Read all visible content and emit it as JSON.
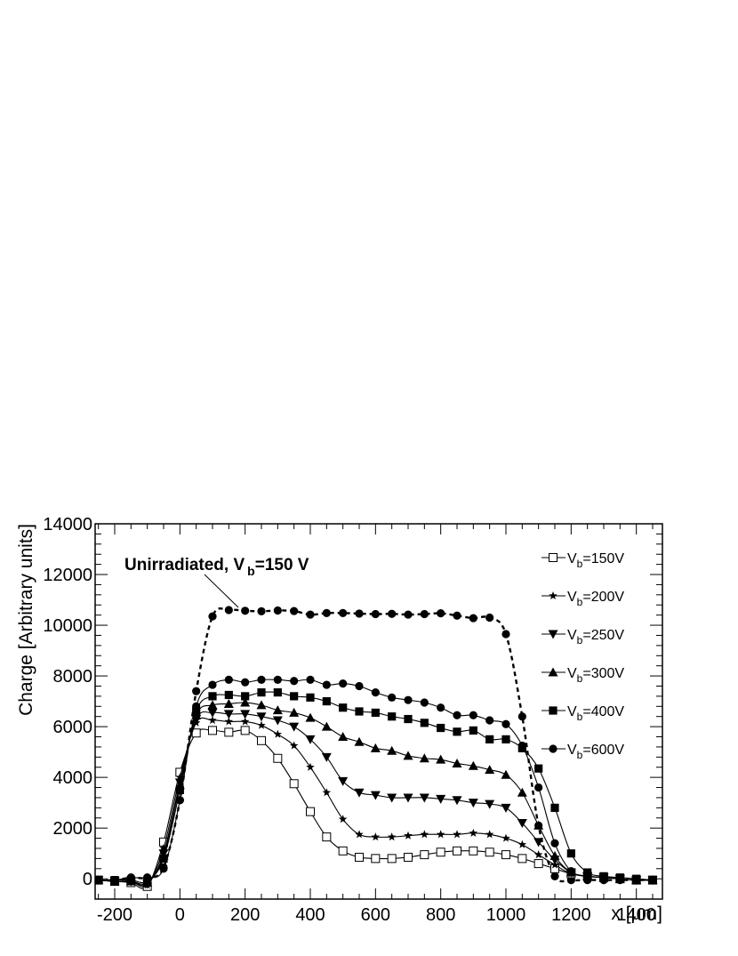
{
  "chart_data": {
    "type": "line",
    "xlabel": "x [μm]",
    "ylabel": "Charge [Arbitrary units]",
    "xlim": [
      -260,
      1480
    ],
    "ylim": [
      -800,
      14000
    ],
    "x_ticks": [
      -200,
      0,
      200,
      400,
      600,
      800,
      1000,
      1200,
      1400
    ],
    "y_ticks": [
      0,
      2000,
      4000,
      6000,
      8000,
      10000,
      12000,
      14000
    ],
    "grid": false,
    "legend_position": "top-right",
    "annotation": {
      "main": "Unirradiated, V",
      "sub": "b",
      "tail": "=150 V",
      "points_to_series": "unirradiated"
    },
    "series": [
      {
        "id": "unirradiated",
        "marker": "circle-filled",
        "line": "dashed",
        "x": [
          -250,
          -200,
          -150,
          -100,
          -50,
          0,
          50,
          100,
          150,
          200,
          250,
          300,
          350,
          400,
          450,
          500,
          550,
          600,
          650,
          700,
          750,
          800,
          850,
          900,
          950,
          1000,
          1050,
          1100,
          1150,
          1200,
          1250,
          1300,
          1350,
          1400,
          1450
        ],
        "y": [
          -50,
          -50,
          50,
          50,
          450,
          3100,
          7400,
          10350,
          10600,
          10570,
          10550,
          10580,
          10560,
          10420,
          10480,
          10480,
          10460,
          10440,
          10450,
          10420,
          10440,
          10470,
          10380,
          10280,
          10300,
          9650,
          6400,
          2100,
          100,
          -50,
          -50,
          -50,
          -50,
          -50,
          -50
        ]
      },
      {
        "id": "vb150",
        "legend_main": "V",
        "legend_sub": "b",
        "legend_tail": "=150V",
        "marker": "square-open",
        "line": "solid",
        "x": [
          -250,
          -200,
          -150,
          -100,
          -50,
          0,
          50,
          100,
          150,
          200,
          250,
          300,
          350,
          400,
          450,
          500,
          550,
          600,
          650,
          700,
          750,
          800,
          850,
          900,
          950,
          1000,
          1050,
          1100,
          1150,
          1200,
          1250,
          1300,
          1350,
          1400,
          1450
        ],
        "y": [
          -50,
          -100,
          -150,
          -300,
          1450,
          4200,
          5750,
          5850,
          5780,
          5850,
          5450,
          4750,
          3750,
          2650,
          1650,
          1100,
          850,
          800,
          800,
          850,
          950,
          1050,
          1100,
          1100,
          1050,
          950,
          800,
          600,
          400,
          200,
          100,
          50,
          0,
          -50,
          -50
        ]
      },
      {
        "id": "vb200",
        "legend_main": "V",
        "legend_sub": "b",
        "legend_tail": "=200V",
        "marker": "star",
        "line": "solid",
        "x": [
          -250,
          -200,
          -150,
          -100,
          -50,
          0,
          50,
          100,
          150,
          200,
          250,
          300,
          350,
          400,
          450,
          500,
          550,
          600,
          650,
          700,
          750,
          800,
          850,
          900,
          950,
          1000,
          1050,
          1100,
          1150,
          1200,
          1250,
          1300,
          1350,
          1400,
          1450
        ],
        "y": [
          -50,
          -100,
          -100,
          -250,
          1200,
          4000,
          6150,
          6250,
          6200,
          6200,
          6050,
          5700,
          5250,
          4400,
          3400,
          2350,
          1750,
          1650,
          1650,
          1700,
          1750,
          1750,
          1750,
          1800,
          1750,
          1600,
          1350,
          950,
          550,
          200,
          100,
          50,
          0,
          -50,
          -50
        ]
      },
      {
        "id": "vb250",
        "legend_main": "V",
        "legend_sub": "b",
        "legend_tail": "=250V",
        "marker": "triangle-down",
        "line": "solid",
        "x": [
          -250,
          -200,
          -150,
          -100,
          -50,
          0,
          50,
          100,
          150,
          200,
          250,
          300,
          350,
          400,
          450,
          500,
          550,
          600,
          650,
          700,
          750,
          800,
          850,
          900,
          950,
          1000,
          1050,
          1100,
          1150,
          1200,
          1250,
          1300,
          1350,
          1400,
          1450
        ],
        "y": [
          -50,
          -100,
          -100,
          -200,
          1000,
          3800,
          6300,
          6550,
          6500,
          6500,
          6400,
          6250,
          6000,
          5500,
          4800,
          3850,
          3400,
          3300,
          3200,
          3200,
          3200,
          3150,
          3100,
          3000,
          2950,
          2800,
          2200,
          1450,
          750,
          250,
          100,
          50,
          0,
          -50,
          -50
        ]
      },
      {
        "id": "vb300",
        "legend_main": "V",
        "legend_sub": "b",
        "legend_tail": "=300V",
        "marker": "triangle-up",
        "line": "solid",
        "x": [
          -250,
          -200,
          -150,
          -100,
          -50,
          0,
          50,
          100,
          150,
          200,
          250,
          300,
          350,
          400,
          450,
          500,
          550,
          600,
          650,
          700,
          750,
          800,
          850,
          900,
          950,
          1000,
          1050,
          1100,
          1150,
          1200,
          1250,
          1300,
          1350,
          1400,
          1450
        ],
        "y": [
          -50,
          -100,
          -100,
          -150,
          900,
          3700,
          6450,
          6850,
          6900,
          6950,
          6850,
          6650,
          6550,
          6350,
          6000,
          5600,
          5400,
          5150,
          5050,
          4850,
          4750,
          4700,
          4550,
          4450,
          4300,
          4100,
          3400,
          2100,
          900,
          250,
          100,
          50,
          0,
          -50,
          -50
        ]
      },
      {
        "id": "vb400",
        "legend_main": "V",
        "legend_sub": "b",
        "legend_tail": "=400V",
        "marker": "square-filled",
        "line": "solid",
        "x": [
          -250,
          -200,
          -150,
          -100,
          -50,
          0,
          50,
          100,
          150,
          200,
          250,
          300,
          350,
          400,
          450,
          500,
          550,
          600,
          650,
          700,
          750,
          800,
          850,
          900,
          950,
          1000,
          1050,
          1100,
          1150,
          1200,
          1250,
          1300,
          1350,
          1400,
          1450
        ],
        "y": [
          -50,
          -50,
          -50,
          -100,
          800,
          3500,
          6600,
          7200,
          7250,
          7200,
          7350,
          7350,
          7200,
          7150,
          7000,
          6750,
          6600,
          6550,
          6400,
          6300,
          6150,
          5950,
          5800,
          5850,
          5500,
          5500,
          5150,
          4350,
          2800,
          1000,
          250,
          100,
          50,
          0,
          -50
        ]
      },
      {
        "id": "vb600",
        "legend_main": "V",
        "legend_sub": "b",
        "legend_tail": "=600V",
        "marker": "circle-filled",
        "line": "solid",
        "x": [
          -250,
          -200,
          -150,
          -100,
          -50,
          0,
          50,
          100,
          150,
          200,
          250,
          300,
          350,
          400,
          450,
          500,
          550,
          600,
          650,
          700,
          750,
          800,
          850,
          900,
          950,
          1000,
          1050,
          1100,
          1150,
          1200,
          1250,
          1300,
          1350,
          1400,
          1450
        ],
        "y": [
          -50,
          -50,
          50,
          50,
          400,
          3100,
          6800,
          7650,
          7850,
          7750,
          7850,
          7850,
          7800,
          7850,
          7650,
          7700,
          7600,
          7350,
          7150,
          7050,
          6950,
          6750,
          6450,
          6450,
          6250,
          6100,
          5250,
          3600,
          1400,
          300,
          100,
          50,
          0,
          -50,
          -50
        ]
      }
    ]
  }
}
